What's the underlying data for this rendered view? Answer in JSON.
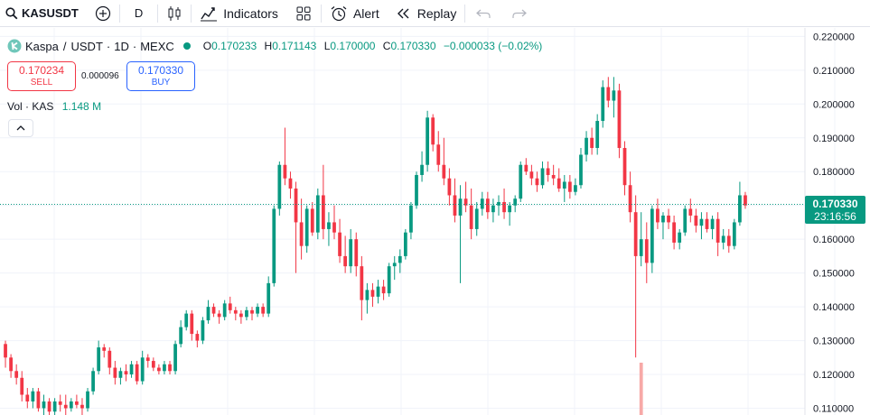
{
  "toolbar": {
    "symbol": "KASUSDT",
    "interval": "D",
    "indicators_label": "Indicators",
    "alert_label": "Alert",
    "replay_label": "Replay"
  },
  "legend": {
    "name": "Kaspa",
    "pair": "USDT",
    "interval": "1D",
    "exchange": "MEXC",
    "open_label": "O",
    "open": "0.170233",
    "high_label": "H",
    "high": "0.171143",
    "low_label": "L",
    "low": "0.170000",
    "close_label": "C",
    "close": "0.170330",
    "change": "−0.000033 (−0.02%)"
  },
  "trade": {
    "sell_price": "0.170234",
    "sell_label": "SELL",
    "spread": "0.000096",
    "buy_price": "0.170330",
    "buy_label": "BUY"
  },
  "volume": {
    "label": "Vol · KAS",
    "value": "1.148 M"
  },
  "price_tag": {
    "price": "0.170330",
    "countdown": "23:16:56"
  },
  "colors": {
    "up": "#089981",
    "down": "#f23645",
    "grid": "#f0f3fa",
    "volume_down": "#f7a9a7"
  },
  "chart_data": {
    "type": "candlestick",
    "symbol": "KASUSDT",
    "exchange": "MEXC",
    "interval": "1D",
    "ylim": [
      0.108,
      0.2225
    ],
    "y_ticks": [
      "0.220000",
      "0.210000",
      "0.200000",
      "0.190000",
      "0.180000",
      "0.170000",
      "0.160000",
      "0.150000",
      "0.140000",
      "0.130000",
      "0.120000",
      "0.110000"
    ],
    "current_price": 0.17033,
    "candles": [
      [
        0.129,
        0.13,
        0.122,
        0.125
      ],
      [
        0.125,
        0.126,
        0.119,
        0.121
      ],
      [
        0.121,
        0.123,
        0.117,
        0.119
      ],
      [
        0.119,
        0.121,
        0.112,
        0.114
      ],
      [
        0.114,
        0.116,
        0.11,
        0.112
      ],
      [
        0.112,
        0.116,
        0.11,
        0.115
      ],
      [
        0.115,
        0.116,
        0.109,
        0.11
      ],
      [
        0.11,
        0.114,
        0.108,
        0.112
      ],
      [
        0.112,
        0.113,
        0.108,
        0.109
      ],
      [
        0.109,
        0.113,
        0.108,
        0.112
      ],
      [
        0.112,
        0.114,
        0.109,
        0.111
      ],
      [
        0.111,
        0.114,
        0.108,
        0.11
      ],
      [
        0.11,
        0.113,
        0.109,
        0.112
      ],
      [
        0.112,
        0.114,
        0.11,
        0.111
      ],
      [
        0.111,
        0.113,
        0.108,
        0.11
      ],
      [
        0.11,
        0.116,
        0.109,
        0.115
      ],
      [
        0.115,
        0.122,
        0.114,
        0.121
      ],
      [
        0.121,
        0.13,
        0.12,
        0.128
      ],
      [
        0.128,
        0.129,
        0.125,
        0.127
      ],
      [
        0.127,
        0.128,
        0.12,
        0.122
      ],
      [
        0.122,
        0.124,
        0.117,
        0.119
      ],
      [
        0.119,
        0.122,
        0.117,
        0.121
      ],
      [
        0.121,
        0.123,
        0.118,
        0.12
      ],
      [
        0.12,
        0.124,
        0.119,
        0.123
      ],
      [
        0.123,
        0.124,
        0.117,
        0.118
      ],
      [
        0.118,
        0.127,
        0.117,
        0.125
      ],
      [
        0.125,
        0.126,
        0.122,
        0.124
      ],
      [
        0.124,
        0.125,
        0.121,
        0.122
      ],
      [
        0.122,
        0.123,
        0.12,
        0.121
      ],
      [
        0.121,
        0.124,
        0.12,
        0.123
      ],
      [
        0.123,
        0.124,
        0.12,
        0.121
      ],
      [
        0.121,
        0.13,
        0.12,
        0.129
      ],
      [
        0.129,
        0.136,
        0.128,
        0.134
      ],
      [
        0.134,
        0.139,
        0.133,
        0.138
      ],
      [
        0.138,
        0.139,
        0.13,
        0.132
      ],
      [
        0.132,
        0.133,
        0.128,
        0.13
      ],
      [
        0.13,
        0.137,
        0.129,
        0.136
      ],
      [
        0.136,
        0.142,
        0.135,
        0.14
      ],
      [
        0.14,
        0.141,
        0.137,
        0.138
      ],
      [
        0.138,
        0.139,
        0.135,
        0.137
      ],
      [
        0.137,
        0.142,
        0.136,
        0.141
      ],
      [
        0.141,
        0.143,
        0.138,
        0.139
      ],
      [
        0.139,
        0.14,
        0.136,
        0.138
      ],
      [
        0.138,
        0.139,
        0.135,
        0.137
      ],
      [
        0.137,
        0.14,
        0.136,
        0.139
      ],
      [
        0.139,
        0.14,
        0.136,
        0.138
      ],
      [
        0.138,
        0.141,
        0.137,
        0.14
      ],
      [
        0.14,
        0.141,
        0.137,
        0.138
      ],
      [
        0.138,
        0.149,
        0.137,
        0.147
      ],
      [
        0.147,
        0.17,
        0.146,
        0.169
      ],
      [
        0.169,
        0.183,
        0.167,
        0.182
      ],
      [
        0.182,
        0.193,
        0.176,
        0.178
      ],
      [
        0.178,
        0.18,
        0.172,
        0.175
      ],
      [
        0.175,
        0.177,
        0.15,
        0.165
      ],
      [
        0.165,
        0.172,
        0.154,
        0.158
      ],
      [
        0.158,
        0.17,
        0.156,
        0.169
      ],
      [
        0.169,
        0.171,
        0.161,
        0.162
      ],
      [
        0.162,
        0.175,
        0.16,
        0.173
      ],
      [
        0.173,
        0.182,
        0.16,
        0.163
      ],
      [
        0.163,
        0.168,
        0.158,
        0.165
      ],
      [
        0.165,
        0.17,
        0.16,
        0.162
      ],
      [
        0.162,
        0.166,
        0.153,
        0.155
      ],
      [
        0.155,
        0.161,
        0.15,
        0.152
      ],
      [
        0.152,
        0.163,
        0.15,
        0.16
      ],
      [
        0.16,
        0.162,
        0.149,
        0.152
      ],
      [
        0.152,
        0.155,
        0.136,
        0.142
      ],
      [
        0.142,
        0.147,
        0.138,
        0.145
      ],
      [
        0.145,
        0.147,
        0.14,
        0.143
      ],
      [
        0.143,
        0.148,
        0.141,
        0.146
      ],
      [
        0.146,
        0.148,
        0.142,
        0.144
      ],
      [
        0.144,
        0.153,
        0.143,
        0.152
      ],
      [
        0.152,
        0.155,
        0.148,
        0.153
      ],
      [
        0.153,
        0.157,
        0.15,
        0.155
      ],
      [
        0.155,
        0.163,
        0.154,
        0.162
      ],
      [
        0.162,
        0.171,
        0.16,
        0.17
      ],
      [
        0.17,
        0.18,
        0.169,
        0.179
      ],
      [
        0.179,
        0.186,
        0.177,
        0.182
      ],
      [
        0.182,
        0.198,
        0.18,
        0.196
      ],
      [
        0.196,
        0.197,
        0.186,
        0.188
      ],
      [
        0.188,
        0.192,
        0.18,
        0.182
      ],
      [
        0.182,
        0.19,
        0.176,
        0.178
      ],
      [
        0.178,
        0.181,
        0.17,
        0.173
      ],
      [
        0.173,
        0.178,
        0.165,
        0.167
      ],
      [
        0.167,
        0.176,
        0.147,
        0.172
      ],
      [
        0.172,
        0.177,
        0.168,
        0.17
      ],
      [
        0.17,
        0.175,
        0.16,
        0.163
      ],
      [
        0.163,
        0.171,
        0.161,
        0.169
      ],
      [
        0.169,
        0.174,
        0.167,
        0.172
      ],
      [
        0.172,
        0.174,
        0.166,
        0.168
      ],
      [
        0.168,
        0.172,
        0.165,
        0.17
      ],
      [
        0.17,
        0.173,
        0.167,
        0.171
      ],
      [
        0.171,
        0.175,
        0.166,
        0.168
      ],
      [
        0.168,
        0.171,
        0.164,
        0.17
      ],
      [
        0.17,
        0.173,
        0.168,
        0.172
      ],
      [
        0.172,
        0.183,
        0.171,
        0.182
      ],
      [
        0.182,
        0.184,
        0.179,
        0.18
      ],
      [
        0.18,
        0.182,
        0.176,
        0.178
      ],
      [
        0.178,
        0.18,
        0.174,
        0.176
      ],
      [
        0.176,
        0.183,
        0.175,
        0.181
      ],
      [
        0.181,
        0.183,
        0.177,
        0.179
      ],
      [
        0.179,
        0.182,
        0.176,
        0.178
      ],
      [
        0.178,
        0.181,
        0.174,
        0.175
      ],
      [
        0.175,
        0.179,
        0.171,
        0.177
      ],
      [
        0.177,
        0.179,
        0.172,
        0.174
      ],
      [
        0.174,
        0.178,
        0.173,
        0.176
      ],
      [
        0.176,
        0.187,
        0.175,
        0.185
      ],
      [
        0.185,
        0.192,
        0.183,
        0.19
      ],
      [
        0.19,
        0.193,
        0.185,
        0.187
      ],
      [
        0.187,
        0.197,
        0.185,
        0.195
      ],
      [
        0.195,
        0.207,
        0.193,
        0.205
      ],
      [
        0.205,
        0.208,
        0.199,
        0.201
      ],
      [
        0.201,
        0.208,
        0.196,
        0.204
      ],
      [
        0.204,
        0.206,
        0.184,
        0.187
      ],
      [
        0.187,
        0.189,
        0.173,
        0.176
      ],
      [
        0.176,
        0.18,
        0.165,
        0.168
      ],
      [
        0.168,
        0.173,
        0.125,
        0.155
      ],
      [
        0.155,
        0.168,
        0.152,
        0.16
      ],
      [
        0.16,
        0.165,
        0.147,
        0.153
      ],
      [
        0.153,
        0.17,
        0.15,
        0.169
      ],
      [
        0.169,
        0.172,
        0.163,
        0.165
      ],
      [
        0.165,
        0.168,
        0.16,
        0.167
      ],
      [
        0.167,
        0.169,
        0.163,
        0.165
      ],
      [
        0.165,
        0.167,
        0.157,
        0.159
      ],
      [
        0.159,
        0.163,
        0.157,
        0.162
      ],
      [
        0.162,
        0.17,
        0.161,
        0.169
      ],
      [
        0.169,
        0.172,
        0.165,
        0.167
      ],
      [
        0.167,
        0.169,
        0.162,
        0.164
      ],
      [
        0.164,
        0.168,
        0.16,
        0.166
      ],
      [
        0.166,
        0.168,
        0.162,
        0.163
      ],
      [
        0.163,
        0.167,
        0.16,
        0.166
      ],
      [
        0.166,
        0.168,
        0.155,
        0.159
      ],
      [
        0.159,
        0.163,
        0.157,
        0.161
      ],
      [
        0.161,
        0.163,
        0.156,
        0.158
      ],
      [
        0.158,
        0.166,
        0.157,
        0.165
      ],
      [
        0.165,
        0.177,
        0.164,
        0.173
      ],
      [
        0.173,
        0.174,
        0.169,
        0.17
      ]
    ],
    "volume_bars": [
      {
        "candle_index": 116,
        "direction": "down"
      }
    ]
  }
}
